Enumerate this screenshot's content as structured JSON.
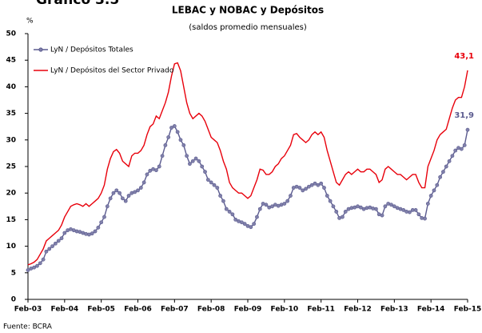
{
  "header": "Gráfico 3.5",
  "chart_data": {
    "type": "line",
    "title": "LEBAC y NOBAC y Depósitos",
    "subtitle": "(saldos promedio mensuales)",
    "y_label": "%",
    "source": "Fuente: BCRA",
    "categories": [
      "Feb-03",
      null,
      null,
      null,
      null,
      null,
      null,
      null,
      null,
      null,
      null,
      null,
      "Feb-04",
      null,
      null,
      null,
      null,
      null,
      null,
      null,
      null,
      null,
      null,
      null,
      "Feb-05",
      null,
      null,
      null,
      null,
      null,
      null,
      null,
      null,
      null,
      null,
      null,
      "Feb-06",
      null,
      null,
      null,
      null,
      null,
      null,
      null,
      null,
      null,
      null,
      null,
      "Feb-07",
      null,
      null,
      null,
      null,
      null,
      null,
      null,
      null,
      null,
      null,
      null,
      "Feb-08",
      null,
      null,
      null,
      null,
      null,
      null,
      null,
      null,
      null,
      null,
      null,
      "Feb-09",
      null,
      null,
      null,
      null,
      null,
      null,
      null,
      null,
      null,
      null,
      null,
      "Feb-10",
      null,
      null,
      null,
      null,
      null,
      null,
      null,
      null,
      null,
      null,
      null,
      "Feb-11",
      null,
      null,
      null,
      null,
      null,
      null,
      null,
      null,
      null,
      null,
      null,
      "Feb-12",
      null,
      null,
      null,
      null,
      null,
      null,
      null,
      null,
      null,
      null,
      null,
      "Feb-13",
      null,
      null,
      null,
      null,
      null,
      null,
      null,
      null,
      null,
      null,
      null,
      "Feb-14",
      null,
      null,
      null,
      null,
      null,
      null,
      null,
      null,
      null,
      null,
      null,
      "Feb-15"
    ],
    "series": [
      {
        "name": "LyN / Depósitos Totales",
        "color": "#5b5b8f",
        "markers": true,
        "values": [
          5.5,
          5.8,
          6,
          6.3,
          6.8,
          7.5,
          9,
          9.5,
          10,
          10.5,
          11,
          11.5,
          12.5,
          13,
          13.2,
          13,
          12.8,
          12.7,
          12.5,
          12.3,
          12.2,
          12.4,
          12.8,
          13.5,
          14.5,
          15.5,
          17.5,
          19,
          20,
          20.5,
          20,
          19,
          18.5,
          19.5,
          20,
          20.2,
          20.5,
          21,
          22,
          23.5,
          24.2,
          24.5,
          24.3,
          25,
          27,
          29,
          30.5,
          32.3,
          32.6,
          31.5,
          30,
          29,
          27,
          25.5,
          26,
          26.5,
          26,
          25,
          24,
          22.5,
          22,
          21.5,
          21,
          19.5,
          18.5,
          17,
          16.5,
          16,
          15,
          14.7,
          14.5,
          14.2,
          13.8,
          13.6,
          14.2,
          15.5,
          17,
          18,
          17.8,
          17.3,
          17.5,
          17.8,
          17.6,
          17.8,
          18,
          18.5,
          19.5,
          21,
          21.2,
          21,
          20.5,
          20.8,
          21.2,
          21.5,
          21.8,
          21.5,
          21.8,
          21,
          19.5,
          18.5,
          17.5,
          16.5,
          15.3,
          15.5,
          16.5,
          17,
          17.2,
          17.3,
          17.5,
          17.3,
          17,
          17.2,
          17.3,
          17.1,
          17,
          16,
          15.8,
          17.5,
          18,
          17.8,
          17.5,
          17.2,
          17,
          16.8,
          16.5,
          16.4,
          16.8,
          16.8,
          16,
          15.3,
          15.2,
          18,
          19.5,
          20.5,
          21.5,
          23,
          24,
          25,
          26,
          27,
          28,
          28.5,
          28.3,
          29,
          31.9
        ],
        "value_labels": {
          "144": "31,9"
        }
      },
      {
        "name": "LyN / Depósitos del Sector Privado",
        "color": "#e8000b",
        "markers": false,
        "values": [
          6.5,
          6.7,
          7,
          7.5,
          8.5,
          9.5,
          11,
          11.5,
          12,
          12.5,
          13,
          14,
          15.5,
          16.5,
          17.5,
          17.8,
          18,
          17.8,
          17.5,
          18,
          17.5,
          18,
          18.5,
          19,
          20,
          21.5,
          24.5,
          26.5,
          27.8,
          28.2,
          27.5,
          26,
          25.5,
          25,
          27,
          27.5,
          27.5,
          28,
          29,
          31,
          32.5,
          33,
          34.5,
          34,
          35.5,
          37,
          39,
          42,
          44.3,
          44.5,
          43,
          40,
          37,
          35,
          34,
          34.5,
          35,
          34.5,
          33.5,
          32,
          30.5,
          30,
          29.5,
          28,
          26,
          24.5,
          22,
          21,
          20.5,
          20,
          20,
          19.5,
          19,
          19.5,
          21,
          22.5,
          24.5,
          24.3,
          23.5,
          23.5,
          24,
          25,
          25.5,
          26.5,
          27,
          28,
          29,
          31,
          31.2,
          30.5,
          30,
          29.5,
          30,
          31,
          31.5,
          31,
          31.5,
          30.5,
          28,
          26,
          24,
          22,
          21.5,
          22.5,
          23.5,
          24,
          23.5,
          24,
          24.5,
          24,
          24,
          24.5,
          24.5,
          24,
          23.5,
          22,
          22.5,
          24.5,
          25,
          24.5,
          24,
          23.5,
          23.5,
          23,
          22.5,
          23,
          23.5,
          23.5,
          22,
          21,
          21,
          25,
          26.5,
          28,
          30,
          31,
          31.5,
          32,
          34,
          36,
          37.5,
          38,
          38,
          40,
          43.1
        ],
        "value_labels": {
          "144": "43,1"
        }
      }
    ],
    "ylim": [
      0,
      50
    ],
    "yticks": [
      0,
      5,
      10,
      15,
      20,
      25,
      30,
      35,
      40,
      45,
      50
    ],
    "grid": false,
    "legend": "upper left"
  }
}
